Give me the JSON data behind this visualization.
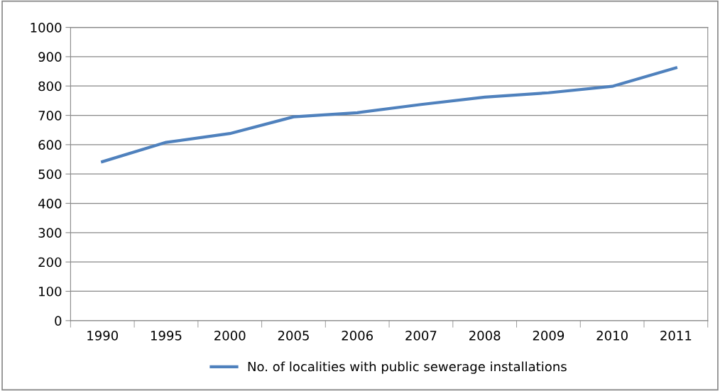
{
  "chart_data": {
    "type": "line",
    "categories": [
      "1990",
      "1995",
      "2000",
      "2005",
      "2006",
      "2007",
      "2008",
      "2009",
      "2010",
      "2011"
    ],
    "series": [
      {
        "name": "No. of localities with public sewerage installations",
        "color": "#4f81bd",
        "values": [
          542,
          608,
          638,
          695,
          709,
          737,
          762,
          777,
          799,
          862
        ]
      }
    ],
    "ylim": [
      0,
      1000
    ],
    "yticks": [
      0,
      100,
      200,
      300,
      400,
      500,
      600,
      700,
      800,
      900,
      1000
    ],
    "grid": "y",
    "legend": "bottom",
    "marker": "none",
    "line_style": "solid"
  }
}
